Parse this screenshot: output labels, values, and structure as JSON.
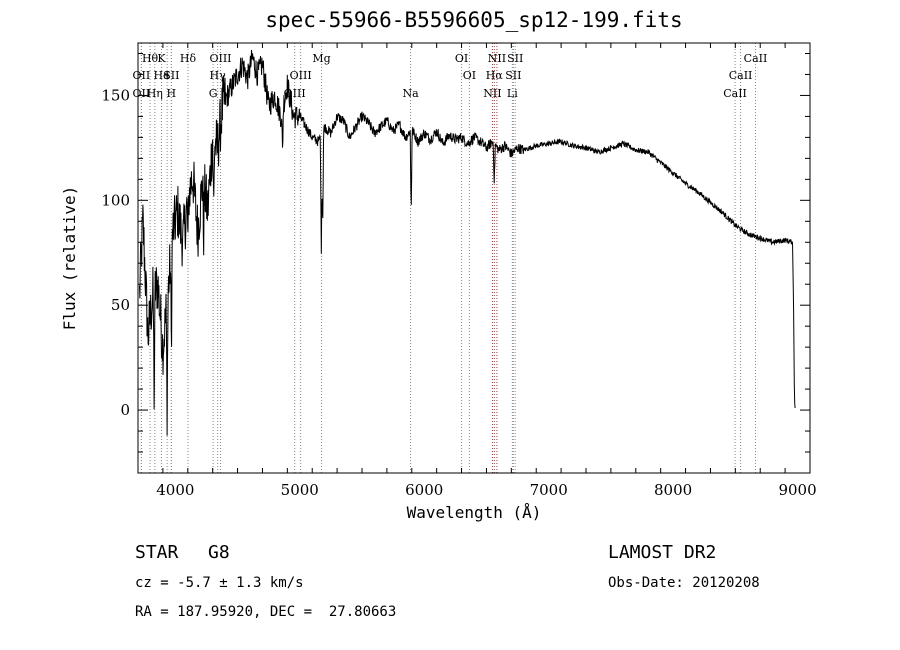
{
  "chart_data": {
    "type": "line",
    "title": "spec-55966-B5596605_sp12-199.fits",
    "xlabel": "Wavelength (Å)",
    "ylabel": "Flux (relative)",
    "xlim": [
      3700,
      9100
    ],
    "ylim": [
      -30,
      175
    ],
    "xticks": [
      4000,
      5000,
      6000,
      7000,
      8000,
      9000
    ],
    "yticks": [
      0,
      50,
      100,
      150
    ],
    "series": [
      {
        "name": "flux",
        "x": [
          3700,
          3740,
          3780,
          3820,
          3860,
          3900,
          3940,
          3980,
          4020,
          4060,
          4100,
          4140,
          4180,
          4220,
          4260,
          4300,
          4340,
          4380,
          4420,
          4460,
          4500,
          4540,
          4580,
          4620,
          4660,
          4700,
          4750,
          4800,
          4850,
          4900,
          4950,
          5000,
          5050,
          5100,
          5150,
          5200,
          5250,
          5300,
          5350,
          5400,
          5450,
          5500,
          5550,
          5600,
          5650,
          5700,
          5750,
          5800,
          5850,
          5900,
          5950,
          6000,
          6050,
          6100,
          6150,
          6200,
          6250,
          6300,
          6350,
          6400,
          6450,
          6500,
          6550,
          6600,
          6650,
          6700,
          6750,
          6800,
          6900,
          7000,
          7100,
          7200,
          7300,
          7400,
          7500,
          7600,
          7700,
          7800,
          7900,
          8000,
          8100,
          8200,
          8300,
          8400,
          8500,
          8600,
          8700,
          8800,
          8900,
          8960,
          8970,
          8975,
          8980
        ],
        "y": [
          40,
          90,
          35,
          55,
          60,
          30,
          55,
          85,
          95,
          80,
          100,
          112,
          85,
          110,
          95,
          130,
          125,
          145,
          150,
          155,
          160,
          165,
          158,
          168,
          160,
          165,
          145,
          150,
          140,
          155,
          140,
          140,
          135,
          130,
          128,
          135,
          132,
          140,
          138,
          130,
          135,
          140,
          137,
          132,
          135,
          138,
          133,
          136,
          130,
          134,
          128,
          132,
          129,
          133,
          127,
          131,
          129,
          130,
          127,
          130,
          128,
          125,
          128,
          124,
          126,
          122,
          125,
          124,
          126,
          127,
          128,
          126,
          125,
          123,
          125,
          127,
          124,
          123,
          118,
          113,
          108,
          104,
          99,
          94,
          88,
          84,
          82,
          80,
          81,
          80,
          40,
          5,
          1
        ]
      }
    ],
    "absorption_features": [
      {
        "x": 3830,
        "depth": 55
      },
      {
        "x": 3934,
        "depth": 50
      },
      {
        "x": 3968,
        "depth": 45
      },
      {
        "x": 4102,
        "depth": 20
      },
      {
        "x": 4227,
        "depth": 25
      },
      {
        "x": 4308,
        "depth": 35
      },
      {
        "x": 4861,
        "depth": 20
      },
      {
        "x": 5173,
        "depth": 55
      },
      {
        "x": 5184,
        "depth": 45
      },
      {
        "x": 5895,
        "depth": 40
      },
      {
        "x": 6563,
        "depth": 20
      }
    ],
    "line_markers": [
      {
        "x": 3797,
        "label": "Hθ",
        "row": 0
      },
      {
        "x": 3889,
        "label": "K",
        "row": 0
      },
      {
        "x": 4102,
        "label": "Hδ",
        "row": 0
      },
      {
        "x": 4363,
        "label": "OIII",
        "row": 0
      },
      {
        "x": 5175,
        "label": "Mg",
        "row": 0
      },
      {
        "x": 6300,
        "label": "OI",
        "row": 0
      },
      {
        "x": 6584,
        "label": "NII",
        "row": 0
      },
      {
        "x": 6731,
        "label": "SII",
        "row": 0
      },
      {
        "x": 8662,
        "label": "CaII",
        "row": 0
      },
      {
        "x": 3727,
        "label": "OII",
        "row": 1
      },
      {
        "x": 3889,
        "label": "He",
        "row": 1
      },
      {
        "x": 3934,
        "label": "I",
        "row": 1
      },
      {
        "x": 3968,
        "label": "SII",
        "row": 1
      },
      {
        "x": 4340,
        "label": "Hγ",
        "row": 1
      },
      {
        "x": 5007,
        "label": "OIII",
        "row": 1
      },
      {
        "x": 6363,
        "label": "OI",
        "row": 1
      },
      {
        "x": 6563,
        "label": "Hα",
        "row": 1
      },
      {
        "x": 6716,
        "label": "SII",
        "row": 1
      },
      {
        "x": 8542,
        "label": "CaII",
        "row": 1
      },
      {
        "x": 3727,
        "label": "OII",
        "row": 2
      },
      {
        "x": 3835,
        "label": "Hη",
        "row": 2
      },
      {
        "x": 3968,
        "label": "H",
        "row": 2
      },
      {
        "x": 4304,
        "label": "G",
        "row": 2
      },
      {
        "x": 4959,
        "label": "OIII",
        "row": 2
      },
      {
        "x": 5890,
        "label": "Na",
        "row": 2
      },
      {
        "x": 6548,
        "label": "NII",
        "row": 2
      },
      {
        "x": 6708,
        "label": "Li",
        "row": 2
      },
      {
        "x": 8498,
        "label": "CaII",
        "row": 2
      }
    ]
  },
  "footer": {
    "object_class": "STAR",
    "subclass": "G8",
    "redshift": "cz = -5.7 ± 1.3 km/s",
    "coords": "RA = 187.95920, DEC =  27.80663",
    "survey": "LAMOST DR2",
    "obs_date": "Obs-Date: 20120208"
  }
}
